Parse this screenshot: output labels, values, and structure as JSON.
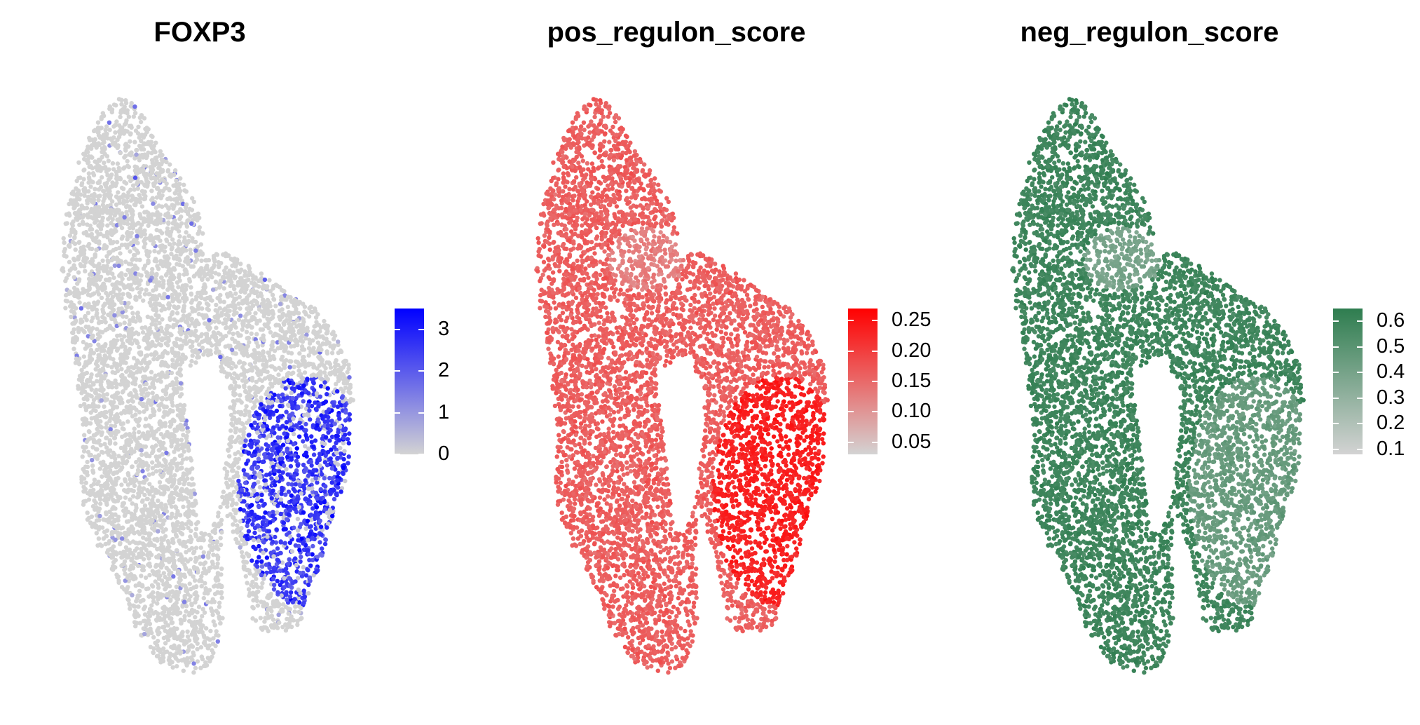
{
  "chart_data": [
    {
      "type": "scatter",
      "title": "FOXP3",
      "xlabel": "",
      "ylabel": "",
      "grid": false,
      "legend_placement": "right",
      "color_scale": {
        "low": "#d3d3d3",
        "high": "#0000ff",
        "limits": [
          0,
          3.5
        ],
        "ticks": [
          0,
          1,
          2,
          3
        ],
        "tick_labels": [
          "0",
          "1",
          "2",
          "3"
        ]
      },
      "pattern": {
        "description_values": "expression mostly 0 across embedding, high in lower-right lobe",
        "lower_right_lobe_level": 0.75,
        "background_level": 0.0,
        "sparse_positive_fraction": 0.03
      }
    },
    {
      "type": "scatter",
      "title": "pos_regulon_score",
      "xlabel": "",
      "ylabel": "",
      "grid": false,
      "legend_placement": "right",
      "color_scale": {
        "low": "#d3d3d3",
        "high": "#ff0000",
        "limits": [
          0.03,
          0.27
        ],
        "ticks": [
          0.05,
          0.1,
          0.15,
          0.2,
          0.25
        ],
        "tick_labels": [
          "0.05",
          "0.10",
          "0.15",
          "0.20",
          "0.25"
        ]
      },
      "pattern": {
        "lower_right_lobe_level": 0.85,
        "background_level": 0.55,
        "upper_right_patch_level": 0.4
      }
    },
    {
      "type": "scatter",
      "title": "neg_regulon_score",
      "xlabel": "",
      "ylabel": "",
      "grid": false,
      "legend_placement": "right",
      "color_scale": {
        "low": "#d3d3d3",
        "high": "#2e7d4f",
        "limits": [
          0.08,
          0.65
        ],
        "ticks": [
          0.1,
          0.2,
          0.3,
          0.4,
          0.5,
          0.6
        ],
        "tick_labels": [
          "0.1",
          "0.2",
          "0.3",
          "0.4",
          "0.5",
          "0.6"
        ]
      },
      "pattern": {
        "lower_right_lobe_level": 0.65,
        "background_level": 0.9,
        "upper_right_patch_level": 0.55
      }
    }
  ]
}
